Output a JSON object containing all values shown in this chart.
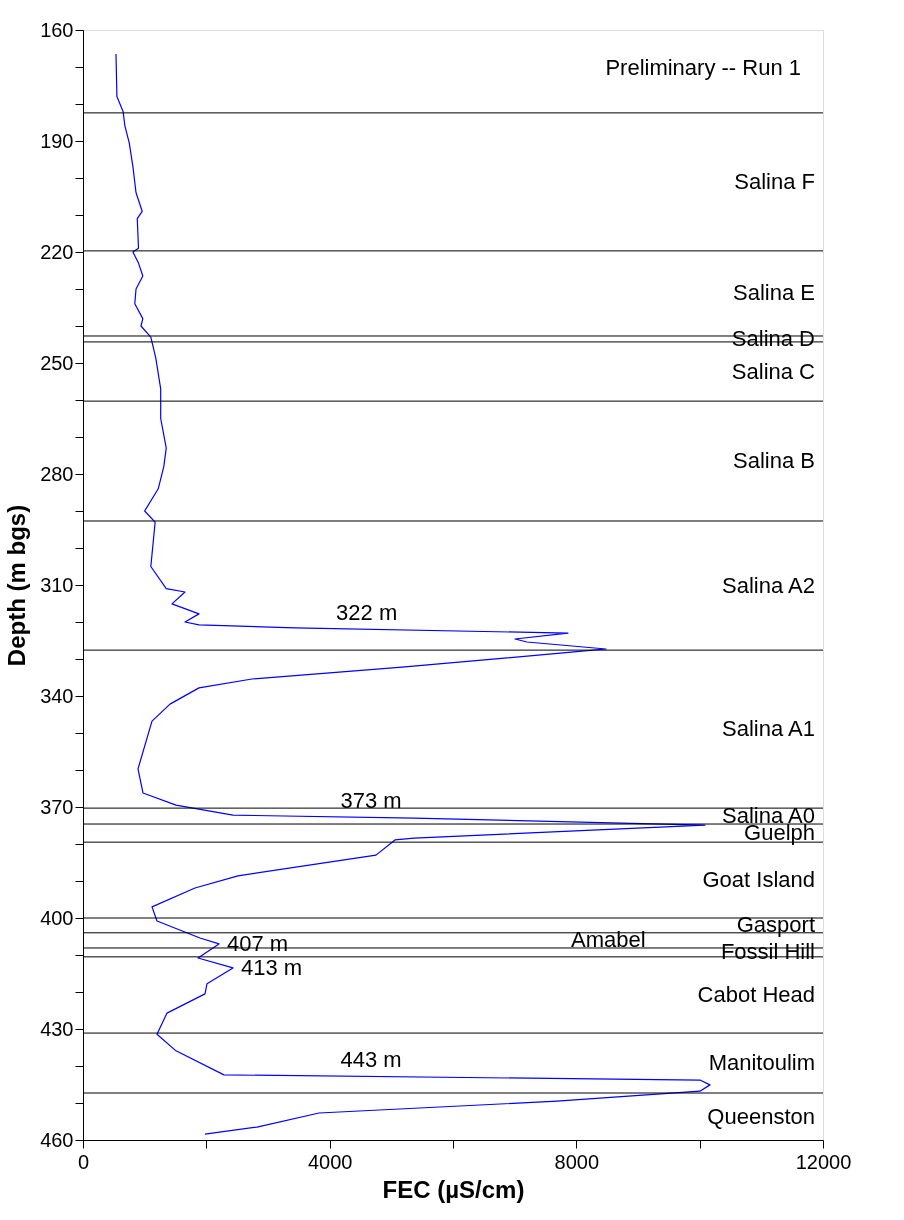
{
  "chart_data": {
    "type": "line",
    "xlabel": "FEC (µS/cm)",
    "ylabel": "Depth (m bgs)",
    "xlim": [
      0,
      12000
    ],
    "ylim": [
      460,
      160
    ],
    "xticks": [
      0,
      {
        "value": 2000,
        "label": null
      },
      4000,
      {
        "value": 6000,
        "label": null
      },
      8000,
      {
        "value": 10000,
        "label": null
      },
      12000
    ],
    "yticks": [
      160,
      {
        "value": 170,
        "label": null
      },
      {
        "value": 180,
        "label": null
      },
      190,
      {
        "value": 200,
        "label": null
      },
      {
        "value": 210,
        "label": null
      },
      220,
      {
        "value": 230,
        "label": null
      },
      {
        "value": 240,
        "label": null
      },
      250,
      {
        "value": 260,
        "label": null
      },
      {
        "value": 270,
        "label": null
      },
      280,
      {
        "value": 290,
        "label": null
      },
      {
        "value": 300,
        "label": null
      },
      310,
      {
        "value": 320,
        "label": null
      },
      {
        "value": 330,
        "label": null
      },
      340,
      {
        "value": 350,
        "label": null
      },
      {
        "value": 360,
        "label": null
      },
      370,
      {
        "value": 380,
        "label": null
      },
      {
        "value": 390,
        "label": null
      },
      400,
      {
        "value": 410,
        "label": null
      },
      {
        "value": 420,
        "label": null
      },
      430,
      {
        "value": 440,
        "label": null
      },
      {
        "value": 450,
        "label": null
      },
      460
    ],
    "grid": false,
    "legend": false,
    "marker": "none",
    "line_style": "solid",
    "series": [
      {
        "color": "#0000ff",
        "x": [
          535,
          550,
          650,
          680,
          750,
          810,
          860,
          960,
          880,
          900,
          810,
          900,
          970,
          860,
          840,
          970,
          940,
          1100,
          1180,
          1260,
          1260,
          1350,
          1310,
          1220,
          1000,
          1170,
          1100,
          1350,
          1654,
          1443,
          1881,
          1654,
          1881,
          3438,
          7865,
          7005,
          7200,
          8481,
          7962,
          5173,
          2740,
          1881,
          1411,
          1119,
          892,
          973,
          1508,
          2432,
          5368,
          10086,
          5368,
          5059,
          4751,
          2513,
          1816,
          1119,
          1200,
          1897,
          2205,
          1865,
          2432,
          2011,
          1978,
          1362,
          1200,
          1508,
          2286,
          10005,
          10167,
          10005,
          7686,
          3827,
          2822,
          1978
        ],
        "values": [
          166.5,
          178,
          182,
          186,
          190.5,
          197,
          204,
          209,
          211,
          219,
          220,
          223,
          226.5,
          230,
          234,
          238,
          240,
          243,
          248.6,
          257,
          265,
          273,
          278,
          284,
          290,
          293,
          305,
          311,
          311.9,
          315.1,
          317.8,
          320.0,
          320.8,
          321.6,
          323.0,
          324.6,
          325.4,
          327.3,
          328.1,
          332.2,
          335.4,
          337.8,
          342.2,
          346.8,
          359.7,
          366.2,
          369.5,
          372.2,
          373.0,
          374.9,
          378.4,
          378.9,
          383,
          388.6,
          391.9,
          397,
          400.8,
          405.4,
          407,
          410.8,
          413.5,
          417.8,
          420.5,
          425.7,
          431.4,
          435.9,
          442.4,
          443.8,
          445.1,
          446.8,
          449.5,
          452.7,
          456.5,
          458.4
        ]
      }
    ],
    "ref_lines": [
      {
        "axis": "y",
        "value": 182.4,
        "color": "#000000",
        "label": "Salina F"
      },
      {
        "axis": "y",
        "value": 219.7,
        "color": "#000000",
        "label": "Salina E"
      },
      {
        "axis": "y",
        "value": 242.7,
        "color": "#000000",
        "label": "Salina D"
      },
      {
        "axis": "y",
        "value": 244.3,
        "color": "#000000",
        "label": "Salina C"
      },
      {
        "axis": "y",
        "value": 260.3,
        "color": "#000000",
        "label": "Salina B"
      },
      {
        "axis": "y",
        "value": 292.7,
        "color": "#000000",
        "label": "Salina A2"
      },
      {
        "axis": "y",
        "value": 327.6,
        "color": "#000000",
        "label": "Salina A1"
      },
      {
        "axis": "y",
        "value": 370.3,
        "color": "#000000",
        "label": "Salina A0"
      },
      {
        "axis": "y",
        "value": 374.6,
        "color": "#000000",
        "label": "Guelph"
      },
      {
        "axis": "y",
        "value": 379.5,
        "color": "#000000",
        "label": "Goat Island"
      },
      {
        "axis": "y",
        "value": 400,
        "color": "#000000",
        "label": "Gasport"
      },
      {
        "axis": "y",
        "value": 404,
        "color": "#000000",
        "label": "Amabel"
      },
      {
        "axis": "y",
        "value": 408.1,
        "color": "#000000",
        "label": "Fossil Hill"
      },
      {
        "axis": "y",
        "value": 410.5,
        "color": "#000000",
        "label": "Cabot Head"
      },
      {
        "axis": "y",
        "value": 431.1,
        "color": "#000000",
        "label": "Manitoulim"
      },
      {
        "axis": "y",
        "value": 447.3,
        "color": "#000000",
        "label": "Queenston"
      }
    ],
    "annotations": [
      "Preliminary -- Run 1",
      {
        "text": "322 m",
        "x": 4600,
        "y": 322.0
      },
      {
        "text": "373 m",
        "x": 4670,
        "y": 372.8
      },
      {
        "text": "407 m",
        "x": 2205,
        "y": 407
      },
      {
        "text": "413 m",
        "x": 2432,
        "y": 413.5
      },
      {
        "text": "443 m",
        "x": 4670,
        "y": 442.8
      }
    ]
  }
}
